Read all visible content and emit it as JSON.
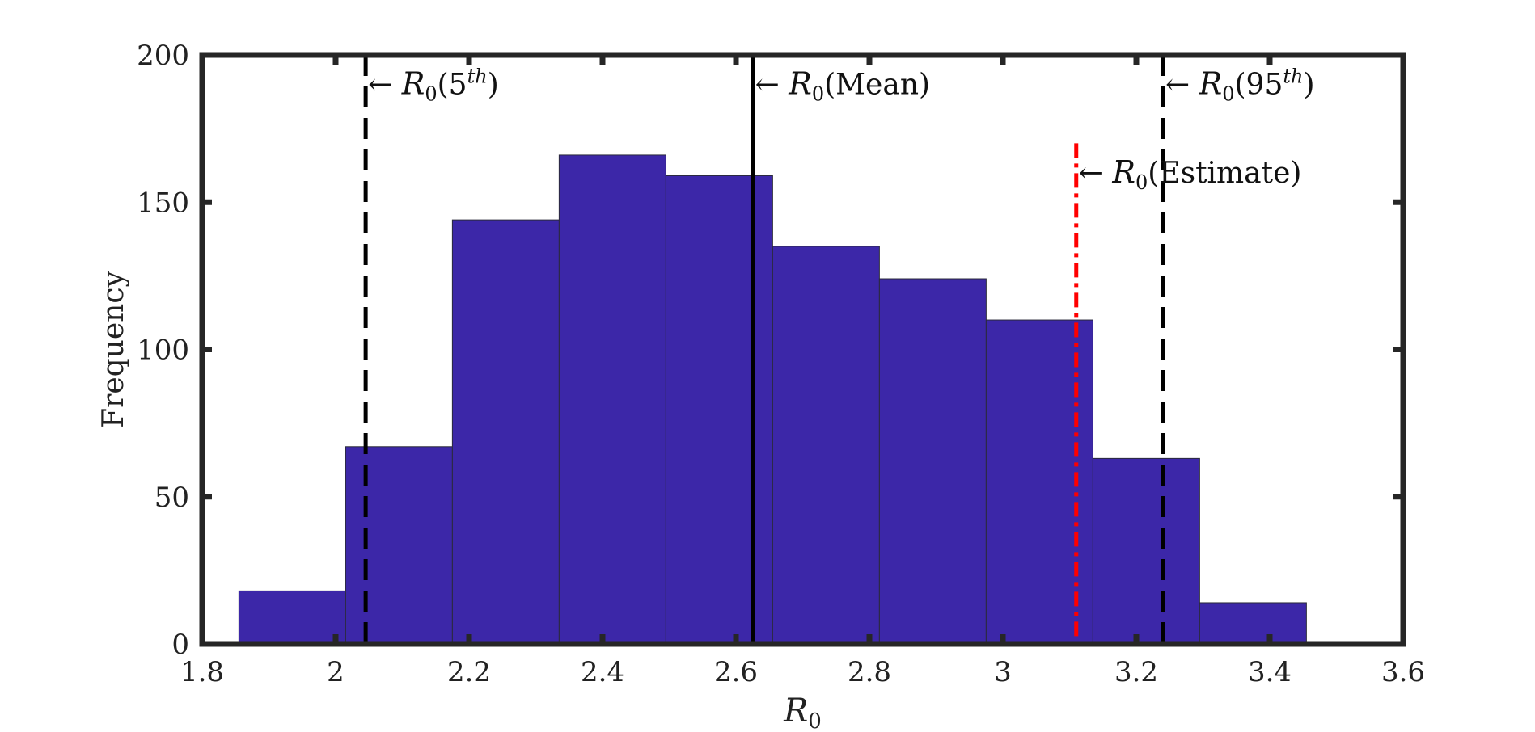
{
  "chart_data": {
    "type": "bar",
    "subtype": "histogram",
    "xlabel": "R0",
    "ylabel": "Frequency",
    "xlim": [
      1.8,
      3.6
    ],
    "ylim": [
      0,
      200
    ],
    "xticks": [
      1.8,
      2.0,
      2.2,
      2.4,
      2.6,
      2.8,
      3.0,
      3.2,
      3.4,
      3.6
    ],
    "xtick_labels": [
      "1.8",
      "2",
      "2.2",
      "2.4",
      "2.6",
      "2.8",
      "3",
      "3.2",
      "3.4",
      "3.6"
    ],
    "yticks": [
      0,
      50,
      100,
      150,
      200
    ],
    "ytick_labels": [
      "0",
      "50",
      "100",
      "150",
      "200"
    ],
    "bin_edges": [
      1.855,
      2.015,
      2.175,
      2.335,
      2.495,
      2.655,
      2.815,
      2.975,
      3.135,
      3.295,
      3.455
    ],
    "counts": [
      18,
      67,
      144,
      166,
      159,
      135,
      124,
      110,
      63,
      14
    ],
    "bar_color": "#3c27a8",
    "reference_lines": [
      {
        "id": "p5",
        "x": 2.045,
        "style": "dashed",
        "color": "#000000",
        "label_sub": "0",
        "label_open": "(5",
        "label_sup": "th",
        "label_close": ")",
        "label_y": 190
      },
      {
        "id": "mean",
        "x": 2.625,
        "style": "solid",
        "color": "#000000",
        "label_sub": "0",
        "label_open": "(Mean)",
        "label_sup": "",
        "label_close": "",
        "label_y": 190
      },
      {
        "id": "p95",
        "x": 3.24,
        "style": "dashed",
        "color": "#000000",
        "label_sub": "0",
        "label_open": "(95",
        "label_sup": "th",
        "label_close": ")",
        "label_y": 190
      },
      {
        "id": "estimate",
        "x": 3.11,
        "style": "dashdot",
        "color": "#ff0000",
        "label_sub": "0",
        "label_open": "(Estimate)",
        "label_sup": "",
        "label_close": "",
        "label_y": 160,
        "y_top": 170
      }
    ],
    "grid": false,
    "legend": "none"
  }
}
